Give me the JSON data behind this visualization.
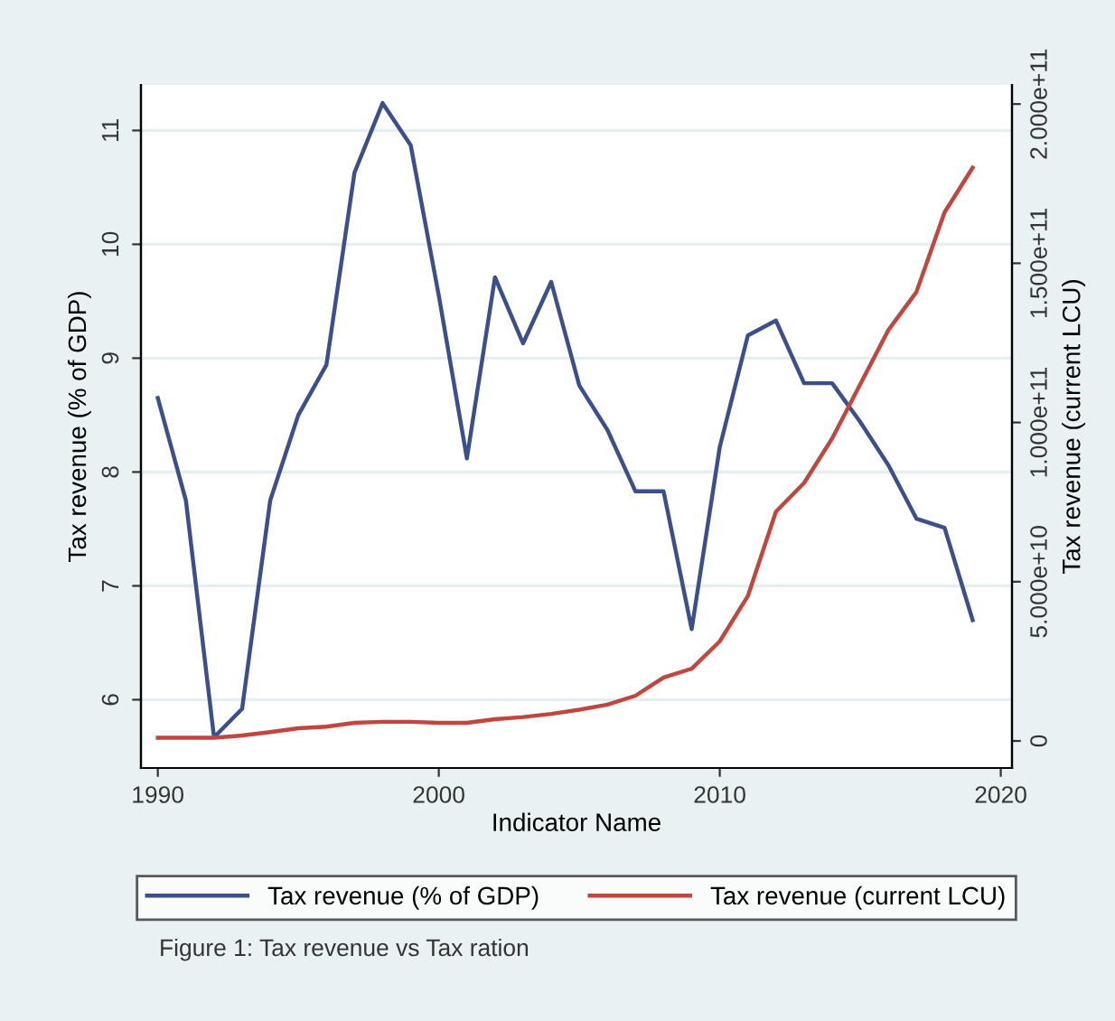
{
  "chart_data": {
    "type": "line",
    "xlabel": "Indicator Name",
    "ylabel": "Tax revenue (% of GDP)",
    "y2label": "Tax revenue (current LCU)",
    "x": [
      1990,
      1991,
      1992,
      1993,
      1994,
      1995,
      1996,
      1997,
      1998,
      1999,
      2000,
      2001,
      2002,
      2003,
      2004,
      2005,
      2006,
      2007,
      2008,
      2009,
      2010,
      2011,
      2012,
      2013,
      2014,
      2015,
      2016,
      2017,
      2018,
      2019
    ],
    "series": [
      {
        "name": "Tax revenue (% of GDP)",
        "color": "#3b4f8c",
        "values": [
          8.65,
          7.75,
          5.67,
          5.92,
          7.75,
          8.5,
          8.94,
          10.63,
          11.24,
          10.87,
          9.55,
          8.12,
          9.71,
          9.13,
          9.67,
          8.76,
          8.37,
          7.83,
          7.83,
          6.62,
          8.22,
          9.2,
          9.33,
          8.78,
          8.78,
          8.44,
          8.06,
          7.59,
          7.51,
          6.7
        ]
      },
      {
        "name": "Tax revenue (current LCU)",
        "color": "#c0463e",
        "axis": "y2",
        "values": [
          1000000000,
          1000000000,
          1000000000,
          1700000000,
          2800000000,
          4000000000,
          4500000000,
          5700000000,
          6000000000,
          6000000000,
          5700000000,
          5700000000,
          6800000000,
          7500000000,
          8500000000,
          9800000000,
          11400000000,
          14200000000,
          19900000000,
          22700000000,
          31300000000,
          45500000000,
          72000000000,
          81000000000,
          95000000000,
          112000000000,
          129000000000,
          141000000000,
          166000000000,
          180000000000
        ]
      }
    ],
    "xlim": [
      1989.4,
      2020.4
    ],
    "xticks": [
      1990,
      2000,
      2010,
      2020
    ],
    "ylim": [
      5.4,
      11.4
    ],
    "yticks": [
      6,
      7,
      8,
      9,
      10,
      11
    ],
    "y2lim": [
      -8500000000,
      206000000000
    ],
    "y2ticks": [
      0,
      {
        "value": 50000000000,
        "label": "5.000e+10"
      },
      {
        "value": 100000000000,
        "label": "1.000e+11"
      },
      {
        "value": 150000000000,
        "label": "1.500e+11"
      },
      {
        "value": 200000000000,
        "label": "2.000e+11"
      }
    ],
    "grid": "y",
    "legend": "bottom",
    "marker": "none",
    "line_style": "solid",
    "annotations": [
      "Figure 1: Tax revenue vs Tax ration"
    ]
  }
}
